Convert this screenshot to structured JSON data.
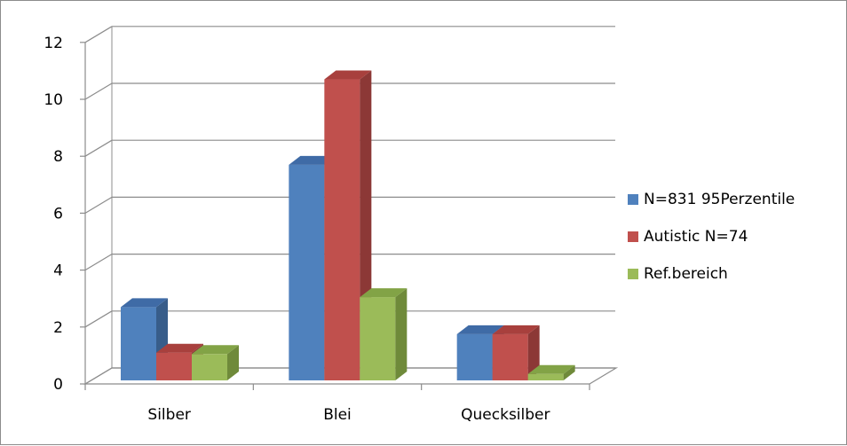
{
  "chart_data": {
    "type": "bar",
    "categories": [
      "Silber",
      "Blei",
      "Quecksilber"
    ],
    "series": [
      {
        "name": "N=831 95Perzentile",
        "values": [
          2.7,
          7.7,
          1.75
        ],
        "color": "#4f81bd",
        "side": "#385d8a",
        "top": "#3f6ba6"
      },
      {
        "name": "Autistic N=74",
        "values": [
          1.1,
          10.7,
          1.75
        ],
        "color": "#c0504d",
        "side": "#8c3836",
        "top": "#a8403d"
      },
      {
        "name": "Ref.bereich",
        "values": [
          1.05,
          3.05,
          0.35
        ],
        "color": "#9bbb59",
        "side": "#6f8a3a",
        "top": "#82a346"
      }
    ],
    "ylim": [
      0,
      12
    ],
    "yticks": [
      "0",
      "2",
      "4",
      "6",
      "8",
      "10",
      "12"
    ],
    "grid": true,
    "legend": "right",
    "three_d": true
  }
}
